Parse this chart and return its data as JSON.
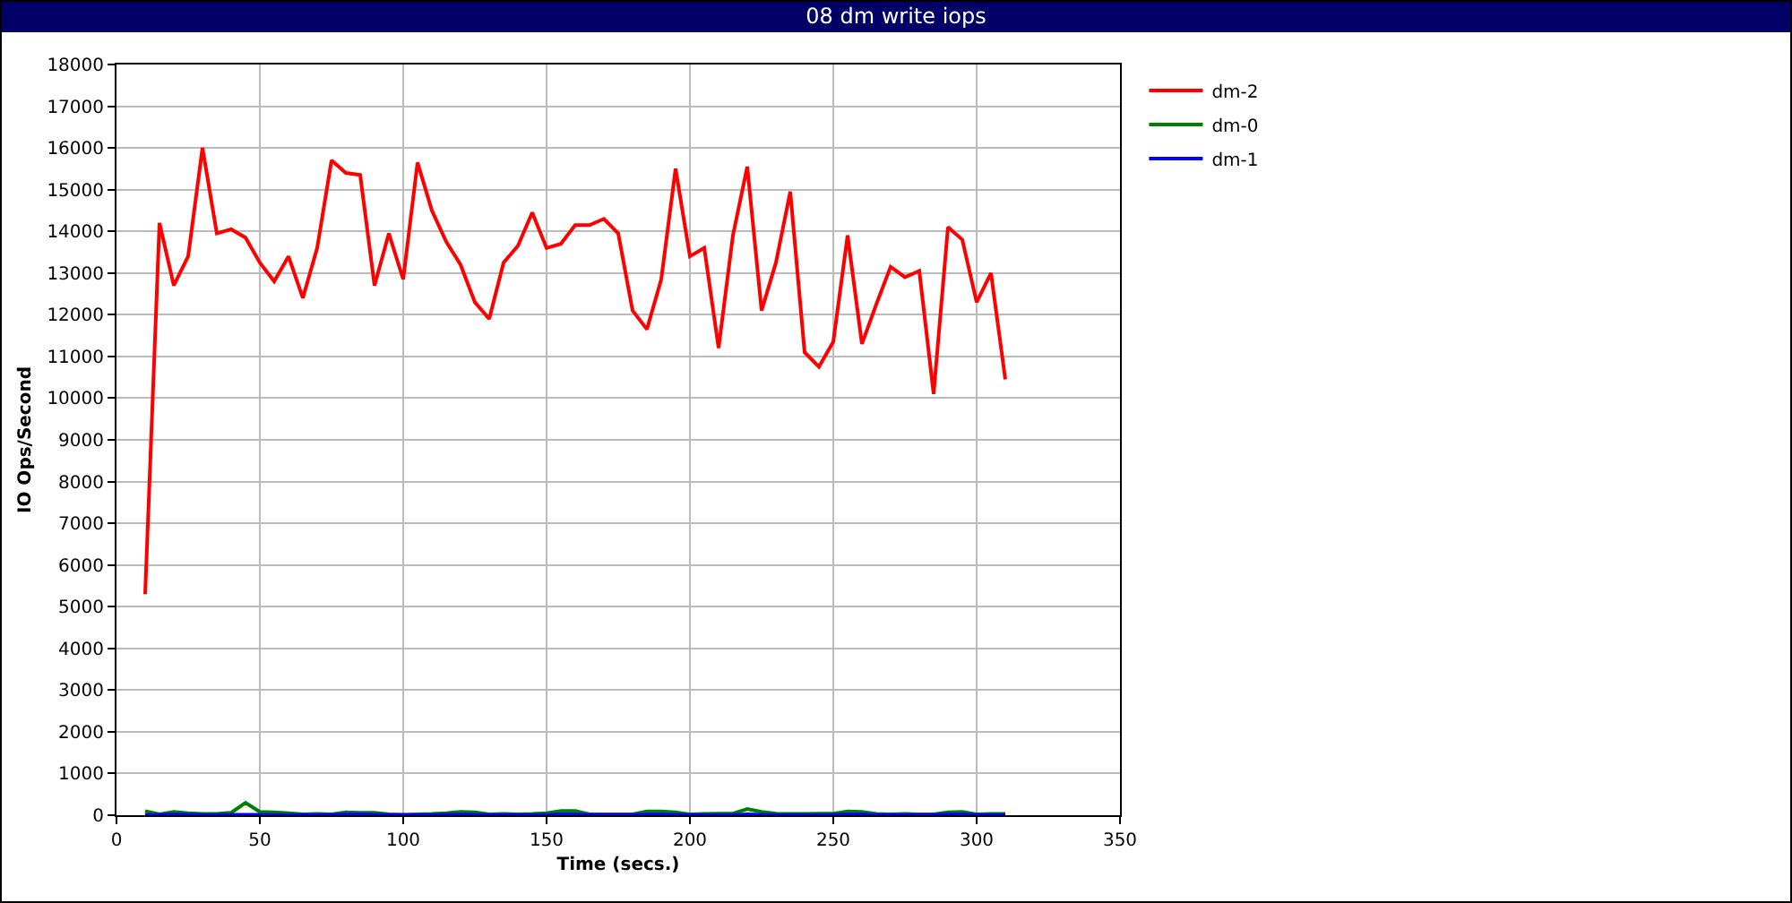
{
  "chart_data": {
    "type": "line",
    "title": "08 dm write iops",
    "xlabel": "Time (secs.)",
    "ylabel": "IO Ops/Second",
    "x": [
      10,
      15,
      20,
      25,
      30,
      35,
      40,
      45,
      50,
      55,
      60,
      65,
      70,
      75,
      80,
      85,
      90,
      95,
      100,
      105,
      110,
      115,
      120,
      125,
      130,
      135,
      140,
      145,
      150,
      155,
      160,
      165,
      170,
      175,
      180,
      185,
      190,
      195,
      200,
      205,
      210,
      215,
      220,
      225,
      230,
      235,
      240,
      245,
      250,
      255,
      260,
      265,
      270,
      275,
      280,
      285,
      290,
      295,
      300,
      305,
      310
    ],
    "series": [
      {
        "name": "dm-2",
        "color": "#ff0000",
        "values": [
          5300,
          14200,
          12700,
          13400,
          16000,
          13950,
          14050,
          13850,
          13250,
          12800,
          13400,
          12400,
          13600,
          15700,
          15400,
          15350,
          12700,
          13950,
          12850,
          15650,
          14500,
          13750,
          13200,
          12300,
          11900,
          13250,
          13650,
          14450,
          13600,
          13700,
          14150,
          14150,
          14300,
          13950,
          12100,
          11650,
          12850,
          15500,
          13400,
          13600,
          11200,
          13900,
          15550,
          12100,
          13250,
          14950,
          11100,
          10750,
          11350,
          13900,
          11300,
          12250,
          13150,
          12900,
          13050,
          10100,
          14100,
          13800,
          12300,
          13000,
          10450
        ]
      },
      {
        "name": "dm-0",
        "color": "#008000",
        "values": [
          100,
          20,
          80,
          50,
          30,
          30,
          60,
          300,
          80,
          70,
          50,
          20,
          30,
          20,
          70,
          60,
          60,
          20,
          10,
          20,
          30,
          50,
          80,
          70,
          20,
          30,
          20,
          30,
          50,
          100,
          100,
          20,
          20,
          20,
          20,
          90,
          90,
          70,
          20,
          30,
          40,
          40,
          150,
          80,
          40,
          30,
          30,
          40,
          40,
          90,
          80,
          30,
          20,
          30,
          20,
          20,
          70,
          80,
          20,
          30,
          30
        ]
      },
      {
        "name": "dm-1",
        "color": "#0000ff",
        "values": [
          10,
          5,
          20,
          10,
          5,
          5,
          10,
          10,
          10,
          5,
          5,
          5,
          5,
          5,
          20,
          20,
          10,
          5,
          5,
          5,
          5,
          10,
          20,
          10,
          5,
          5,
          5,
          5,
          5,
          20,
          20,
          5,
          5,
          5,
          5,
          20,
          20,
          10,
          5,
          5,
          5,
          5,
          20,
          10,
          5,
          5,
          5,
          5,
          5,
          20,
          20,
          5,
          5,
          5,
          5,
          5,
          20,
          20,
          5,
          5,
          5
        ]
      }
    ],
    "xlim": [
      0,
      350
    ],
    "xticks": [
      0,
      50,
      100,
      150,
      200,
      250,
      300,
      350
    ],
    "ylim": [
      0,
      18000
    ],
    "yticks": [
      0,
      1000,
      2000,
      3000,
      4000,
      5000,
      6000,
      7000,
      8000,
      9000,
      10000,
      11000,
      12000,
      13000,
      14000,
      15000,
      16000,
      17000,
      18000
    ],
    "grid": true,
    "legend": "top right",
    "marker": "none",
    "line_style": "solid"
  }
}
